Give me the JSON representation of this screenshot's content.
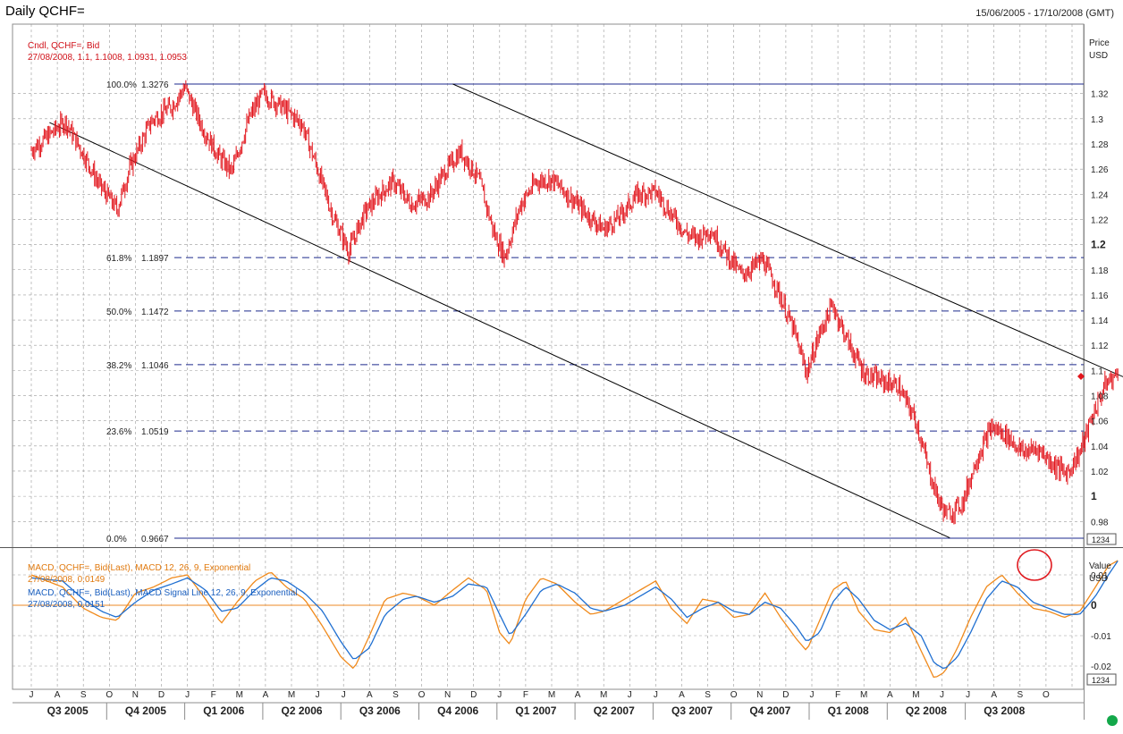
{
  "header": {
    "title": "Daily QCHF=",
    "date_range": "15/06/2005 - 17/10/2008 (GMT)"
  },
  "price_panel": {
    "axis_title_1": "Price",
    "axis_title_2": "USD",
    "legend_line1": "Cndl, QCHF=, Bid",
    "legend_line2": "27/08/2008, 1.1, 1.1008, 1.0931, 1.0953",
    "badge": "1234"
  },
  "macd_panel": {
    "axis_title_1": "Value",
    "axis_title_2": "USD",
    "legend_macd_1": "MACD, QCHF=, Bid(Last), MACD 12, 26, 9, Exponential",
    "legend_macd_2": "27/08/2008, 0.0149",
    "legend_signal_1": "MACD, QCHF=, Bid(Last), MACD Signal Line 12, 26, 9, Exponential",
    "legend_signal_2": "27/08/2008, 0.0151",
    "badge": "1234"
  },
  "colors": {
    "candles": "#e2141b",
    "macd": "#f08a1c",
    "signal": "#1f6fd1",
    "fib_lines": "#1c2a8c",
    "trend_lines": "#000000",
    "grid": "#9a9a9a",
    "zero_line": "#f0a050",
    "highlight_circle": "#e0191f",
    "status_dot": "#13a84a"
  },
  "chart_data": [
    {
      "type": "candlestick",
      "title": "Daily QCHF=",
      "ylabel": "Price USD",
      "ylim": [
        0.96,
        1.34
      ],
      "yticks": [
        {
          "value": 0.98,
          "label": "0.98"
        },
        {
          "value": 1.0,
          "label": "1"
        },
        {
          "value": 1.02,
          "label": "1.02"
        },
        {
          "value": 1.04,
          "label": "1.04"
        },
        {
          "value": 1.06,
          "label": "1.06"
        },
        {
          "value": 1.08,
          "label": "1.08"
        },
        {
          "value": 1.1,
          "label": "1.1"
        },
        {
          "value": 1.12,
          "label": "1.12"
        },
        {
          "value": 1.14,
          "label": "1.14"
        },
        {
          "value": 1.16,
          "label": "1.16"
        },
        {
          "value": 1.18,
          "label": "1.18"
        },
        {
          "value": 1.2,
          "label": "1.2"
        },
        {
          "value": 1.22,
          "label": "1.22"
        },
        {
          "value": 1.24,
          "label": "1.24"
        },
        {
          "value": 1.26,
          "label": "1.26"
        },
        {
          "value": 1.28,
          "label": "1.28"
        },
        {
          "value": 1.3,
          "label": "1.3"
        },
        {
          "value": 1.32,
          "label": "1.32"
        }
      ],
      "months": [
        "J",
        "A",
        "S",
        "O",
        "N",
        "D",
        "J",
        "F",
        "M",
        "A",
        "M",
        "J",
        "J",
        "A",
        "S",
        "O",
        "N",
        "D",
        "J",
        "F",
        "M",
        "A",
        "M",
        "J",
        "J",
        "A",
        "S",
        "O",
        "N",
        "D",
        "J",
        "F",
        "M",
        "A",
        "M",
        "J",
        "J",
        "A",
        "S",
        "O"
      ],
      "quarters": [
        "Q3 2005",
        "Q4 2005",
        "Q1 2006",
        "Q2 2006",
        "Q3 2006",
        "Q4 2006",
        "Q1 2007",
        "Q2 2007",
        "Q3 2007",
        "Q4 2007",
        "Q1 2008",
        "Q2 2008",
        "Q3 2008"
      ],
      "close_series": {
        "name": "Cndl, QCHF=, Bid",
        "points": [
          [
            0,
            1.275
          ],
          [
            1.3,
            1.298
          ],
          [
            2.0,
            1.272
          ],
          [
            2.6,
            1.248
          ],
          [
            3.3,
            1.228
          ],
          [
            3.8,
            1.262
          ],
          [
            4.6,
            1.298
          ],
          [
            5.4,
            1.31
          ],
          [
            5.9,
            1.325
          ],
          [
            6.6,
            1.292
          ],
          [
            7.2,
            1.27
          ],
          [
            7.7,
            1.258
          ],
          [
            8.4,
            1.302
          ],
          [
            8.9,
            1.32
          ],
          [
            9.6,
            1.31
          ],
          [
            10.4,
            1.296
          ],
          [
            11.0,
            1.26
          ],
          [
            11.6,
            1.222
          ],
          [
            12.2,
            1.195
          ],
          [
            12.8,
            1.225
          ],
          [
            13.3,
            1.238
          ],
          [
            13.9,
            1.25
          ],
          [
            14.6,
            1.232
          ],
          [
            15.3,
            1.238
          ],
          [
            15.9,
            1.258
          ],
          [
            16.5,
            1.274
          ],
          [
            17.2,
            1.252
          ],
          [
            17.8,
            1.208
          ],
          [
            18.2,
            1.19
          ],
          [
            18.8,
            1.232
          ],
          [
            19.4,
            1.25
          ],
          [
            20.0,
            1.252
          ],
          [
            20.7,
            1.238
          ],
          [
            21.3,
            1.225
          ],
          [
            22.0,
            1.212
          ],
          [
            22.6,
            1.222
          ],
          [
            23.3,
            1.24
          ],
          [
            24.0,
            1.242
          ],
          [
            24.6,
            1.224
          ],
          [
            25.2,
            1.208
          ],
          [
            25.6,
            1.205
          ],
          [
            26.1,
            1.212
          ],
          [
            26.6,
            1.196
          ],
          [
            27.3,
            1.176
          ],
          [
            28.1,
            1.188
          ],
          [
            28.6,
            1.168
          ],
          [
            29.3,
            1.132
          ],
          [
            29.8,
            1.098
          ],
          [
            30.3,
            1.13
          ],
          [
            30.8,
            1.152
          ],
          [
            31.4,
            1.122
          ],
          [
            32.0,
            1.098
          ],
          [
            32.6,
            1.092
          ],
          [
            33.3,
            1.088
          ],
          [
            34.0,
            1.06
          ],
          [
            34.5,
            1.02
          ],
          [
            34.9,
            0.995
          ],
          [
            35.2,
            0.985
          ],
          [
            35.8,
            0.995
          ],
          [
            36.3,
            1.028
          ],
          [
            36.9,
            1.055
          ],
          [
            37.5,
            1.048
          ],
          [
            38.1,
            1.035
          ],
          [
            38.7,
            1.038
          ],
          [
            39.3,
            1.025
          ],
          [
            39.8,
            1.018
          ],
          [
            40.3,
            1.035
          ],
          [
            40.8,
            1.065
          ],
          [
            41.3,
            1.09
          ],
          [
            41.8,
            1.098
          ]
        ]
      },
      "fibonacci_levels": [
        {
          "label": "100.0%",
          "value": "1.3276",
          "level": 1.3276
        },
        {
          "label": "61.8%",
          "value": "1.1897",
          "level": 1.1897
        },
        {
          "label": "50.0%",
          "value": "1.1472",
          "level": 1.1472
        },
        {
          "label": "38.2%",
          "value": "1.1046",
          "level": 1.1046
        },
        {
          "label": "23.6%",
          "value": "1.0519",
          "level": 1.0519
        },
        {
          "label": "0.0%",
          "value": "0.9667",
          "level": 0.9667
        }
      ],
      "trend_lines": [
        {
          "from": [
            0.7,
            1.297
          ],
          "to": [
            35.3,
            0.967
          ]
        },
        {
          "from": [
            16.2,
            1.3276
          ],
          "to": [
            43.4,
            1.082
          ]
        }
      ],
      "last_price_marker": 1.0953,
      "grid": true
    },
    {
      "type": "line",
      "title": "MACD 12, 26, 9, Exponential",
      "ylabel": "Value USD",
      "ylim": [
        -0.0235,
        0.0212
      ],
      "yticks": [
        {
          "value": -0.02,
          "label": "-0.02"
        },
        {
          "value": -0.01,
          "label": "-0.01"
        },
        {
          "value": 0,
          "label": "0"
        },
        {
          "value": 0.01,
          "label": "0.01"
        }
      ],
      "series": [
        {
          "name": "MACD, QCHF=, Bid(Last), MACD 12, 26, 9, Exponential",
          "points": [
            [
              0,
              0.01
            ],
            [
              1.2,
              0.006
            ],
            [
              2.0,
              -0.001
            ],
            [
              2.7,
              -0.004
            ],
            [
              3.3,
              -0.005
            ],
            [
              4.0,
              0.004
            ],
            [
              4.7,
              0.006
            ],
            [
              5.4,
              0.009
            ],
            [
              6.0,
              0.01
            ],
            [
              6.7,
              0.002
            ],
            [
              7.3,
              -0.006
            ],
            [
              7.9,
              0.001
            ],
            [
              8.6,
              0.008
            ],
            [
              9.2,
              0.011
            ],
            [
              9.8,
              0.006
            ],
            [
              10.5,
              0.002
            ],
            [
              11.2,
              -0.007
            ],
            [
              11.9,
              -0.017
            ],
            [
              12.4,
              -0.021
            ],
            [
              13.0,
              -0.01
            ],
            [
              13.6,
              0.002
            ],
            [
              14.3,
              0.004
            ],
            [
              14.8,
              0.003
            ],
            [
              15.5,
              0.0
            ],
            [
              16.2,
              0.005
            ],
            [
              16.8,
              0.009
            ],
            [
              17.5,
              0.005
            ],
            [
              18.0,
              -0.009
            ],
            [
              18.4,
              -0.013
            ],
            [
              19.0,
              0.002
            ],
            [
              19.6,
              0.009
            ],
            [
              20.2,
              0.007
            ],
            [
              20.9,
              0.001
            ],
            [
              21.5,
              -0.003
            ],
            [
              22.0,
              -0.002
            ],
            [
              22.8,
              0.002
            ],
            [
              23.4,
              0.005
            ],
            [
              24.0,
              0.008
            ],
            [
              24.6,
              -0.001
            ],
            [
              25.2,
              -0.006
            ],
            [
              25.8,
              0.002
            ],
            [
              26.4,
              0.001
            ],
            [
              27.0,
              -0.004
            ],
            [
              27.6,
              -0.003
            ],
            [
              28.2,
              0.004
            ],
            [
              28.8,
              -0.004
            ],
            [
              29.4,
              -0.011
            ],
            [
              29.8,
              -0.015
            ],
            [
              30.3,
              -0.005
            ],
            [
              30.8,
              0.005
            ],
            [
              31.3,
              0.008
            ],
            [
              31.8,
              -0.002
            ],
            [
              32.4,
              -0.008
            ],
            [
              33.0,
              -0.009
            ],
            [
              33.6,
              -0.004
            ],
            [
              34.2,
              -0.015
            ],
            [
              34.7,
              -0.024
            ],
            [
              35.1,
              -0.022
            ],
            [
              35.6,
              -0.014
            ],
            [
              36.1,
              -0.004
            ],
            [
              36.7,
              0.006
            ],
            [
              37.3,
              0.01
            ],
            [
              37.9,
              0.004
            ],
            [
              38.5,
              -0.001
            ],
            [
              39.1,
              -0.002
            ],
            [
              39.7,
              -0.004
            ],
            [
              40.3,
              -0.002
            ],
            [
              40.9,
              0.006
            ],
            [
              41.4,
              0.013
            ],
            [
              41.8,
              0.0149
            ]
          ]
        },
        {
          "name": "MACD, QCHF=, Bid(Last), MACD Signal Line 12, 26, 9, Exponential",
          "points": [
            [
              0,
              0.009
            ],
            [
              1.2,
              0.008
            ],
            [
              2.0,
              0.002
            ],
            [
              2.7,
              -0.002
            ],
            [
              3.3,
              -0.004
            ],
            [
              4.0,
              0.001
            ],
            [
              4.7,
              0.005
            ],
            [
              5.4,
              0.007
            ],
            [
              6.0,
              0.009
            ],
            [
              6.7,
              0.005
            ],
            [
              7.3,
              -0.002
            ],
            [
              7.9,
              -0.001
            ],
            [
              8.6,
              0.005
            ],
            [
              9.2,
              0.009
            ],
            [
              9.8,
              0.008
            ],
            [
              10.5,
              0.004
            ],
            [
              11.2,
              -0.002
            ],
            [
              11.9,
              -0.012
            ],
            [
              12.4,
              -0.018
            ],
            [
              13.0,
              -0.014
            ],
            [
              13.6,
              -0.003
            ],
            [
              14.3,
              0.002
            ],
            [
              14.8,
              0.003
            ],
            [
              15.5,
              0.001
            ],
            [
              16.2,
              0.003
            ],
            [
              16.8,
              0.007
            ],
            [
              17.5,
              0.006
            ],
            [
              18.0,
              -0.003
            ],
            [
              18.4,
              -0.01
            ],
            [
              19.0,
              -0.003
            ],
            [
              19.6,
              0.005
            ],
            [
              20.2,
              0.007
            ],
            [
              20.9,
              0.004
            ],
            [
              21.5,
              -0.001
            ],
            [
              22.0,
              -0.002
            ],
            [
              22.8,
              0.0
            ],
            [
              23.4,
              0.003
            ],
            [
              24.0,
              0.006
            ],
            [
              24.6,
              0.002
            ],
            [
              25.2,
              -0.004
            ],
            [
              25.8,
              -0.001
            ],
            [
              26.4,
              0.001
            ],
            [
              27.0,
              -0.002
            ],
            [
              27.6,
              -0.003
            ],
            [
              28.2,
              0.001
            ],
            [
              28.8,
              -0.001
            ],
            [
              29.4,
              -0.007
            ],
            [
              29.8,
              -0.012
            ],
            [
              30.3,
              -0.009
            ],
            [
              30.8,
              0.001
            ],
            [
              31.3,
              0.006
            ],
            [
              31.8,
              0.002
            ],
            [
              32.4,
              -0.005
            ],
            [
              33.0,
              -0.008
            ],
            [
              33.6,
              -0.006
            ],
            [
              34.2,
              -0.01
            ],
            [
              34.7,
              -0.019
            ],
            [
              35.1,
              -0.021
            ],
            [
              35.6,
              -0.017
            ],
            [
              36.1,
              -0.009
            ],
            [
              36.7,
              0.002
            ],
            [
              37.3,
              0.008
            ],
            [
              37.9,
              0.006
            ],
            [
              38.5,
              0.001
            ],
            [
              39.1,
              -0.001
            ],
            [
              39.7,
              -0.003
            ],
            [
              40.3,
              -0.003
            ],
            [
              40.9,
              0.003
            ],
            [
              41.4,
              0.01
            ],
            [
              41.8,
              0.0151
            ]
          ]
        }
      ],
      "zero_line": true,
      "grid": true
    }
  ]
}
